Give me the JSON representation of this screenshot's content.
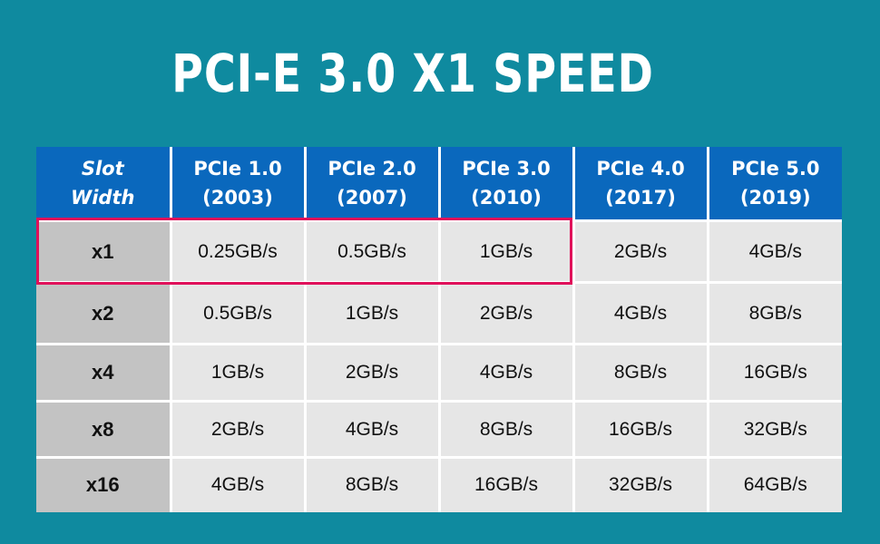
{
  "title": "PCI-E 3.0 X1 SPEED",
  "table": {
    "headers": [
      {
        "line1": "Slot",
        "line2": "Width"
      },
      {
        "line1": "PCIe 1.0",
        "line2": "(2003)"
      },
      {
        "line1": "PCIe 2.0",
        "line2": "(2007)"
      },
      {
        "line1": "PCIe 3.0",
        "line2": "(2010)"
      },
      {
        "line1": "PCIe 4.0",
        "line2": "(2017)"
      },
      {
        "line1": "PCIe 5.0",
        "line2": "(2019)"
      }
    ],
    "rows": [
      [
        "x1",
        "0.25GB/s",
        "0.5GB/s",
        "1GB/s",
        "2GB/s",
        "4GB/s"
      ],
      [
        "x2",
        "0.5GB/s",
        "1GB/s",
        "2GB/s",
        "4GB/s",
        "8GB/s"
      ],
      [
        "x4",
        "1GB/s",
        "2GB/s",
        "4GB/s",
        "8GB/s",
        "16GB/s"
      ],
      [
        "x8",
        "2GB/s",
        "4GB/s",
        "8GB/s",
        "16GB/s",
        "32GB/s"
      ],
      [
        "x16",
        "4GB/s",
        "8GB/s",
        "16GB/s",
        "32GB/s",
        "64GB/s"
      ]
    ],
    "highlight": {
      "row": "x1",
      "columns": [
        "Slot Width",
        "PCIe 1.0",
        "PCIe 2.0",
        "PCIe 3.0"
      ],
      "color": "#e0105a"
    }
  },
  "colors": {
    "background": "#0f8a9f",
    "header": "#0a68bd",
    "width_cell": "#c3c3c3",
    "cell": "#e6e6e6"
  }
}
